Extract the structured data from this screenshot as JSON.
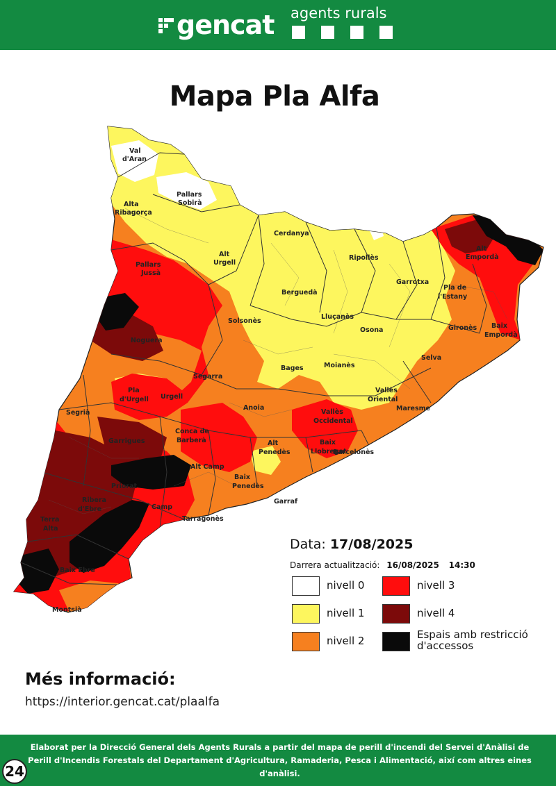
{
  "header": {
    "brand": "gencat",
    "department": "agents rurals",
    "brand_color": "#138a41"
  },
  "title": "Mapa Pla Alfa",
  "map": {
    "type": "choropleth",
    "region": "Catalunya",
    "comarca_labels": [
      "Val d'Aran",
      "Pallars Sobirà",
      "Alta Ribagorça",
      "Pallars Jussà",
      "Alt Urgell",
      "Cerdanya",
      "Ripollès",
      "Alt Empordà",
      "Garrotxa",
      "Pla de l'Estany",
      "Berguedà",
      "Solsonès",
      "Lluçanès",
      "Osona",
      "Gironès",
      "Baix Empordà",
      "Noguera",
      "Bages",
      "Moianès",
      "Selva",
      "Segarra",
      "Pla d'Urgell",
      "Urgell",
      "Vallès Oriental",
      "Segrià",
      "Anoia",
      "Maresme",
      "Vallès Occidental",
      "Garrigues",
      "Conca de Barberà",
      "Alt Penedès",
      "Baix Llobregat",
      "Barcelonès",
      "Alt Camp",
      "Baix Penedès",
      "Garraf",
      "Priorat",
      "Ribera d'Ebre",
      "Camp",
      "Tarragonès",
      "Terra Alta",
      "Baix Ebre",
      "Montsià"
    ]
  },
  "legend": {
    "date_label": "Data:",
    "date_value": "17/08/2025",
    "update_label": "Darrera actualització:",
    "update_date": "16/08/2025",
    "update_time": "14:30",
    "items": [
      {
        "label": "nivell 0",
        "color": "#ffffff"
      },
      {
        "label": "nivell 3",
        "color": "#ff0d0d"
      },
      {
        "label": "nivell 1",
        "color": "#fdf65e"
      },
      {
        "label": "nivell 4",
        "color": "#7c0a0a"
      },
      {
        "label": "nivell 2",
        "color": "#f6801f"
      },
      {
        "label": "Espais amb restricció d'accessos",
        "color": "#0a0a0a"
      }
    ]
  },
  "more_info": {
    "title": "Més informació:",
    "url": "https://interior.gencat.cat/plaalfa"
  },
  "footer": {
    "text": "Elaborat per la Direcció General dels Agents Rurals a partir del mapa de perill d'incendi del Servei d'Anàlisi de Perill d'Incendis Forestals del Departament d'Agricultura, Ramaderia, Pesca i Alimentació, així com altres eines d'anàlisi."
  },
  "badge": "24"
}
